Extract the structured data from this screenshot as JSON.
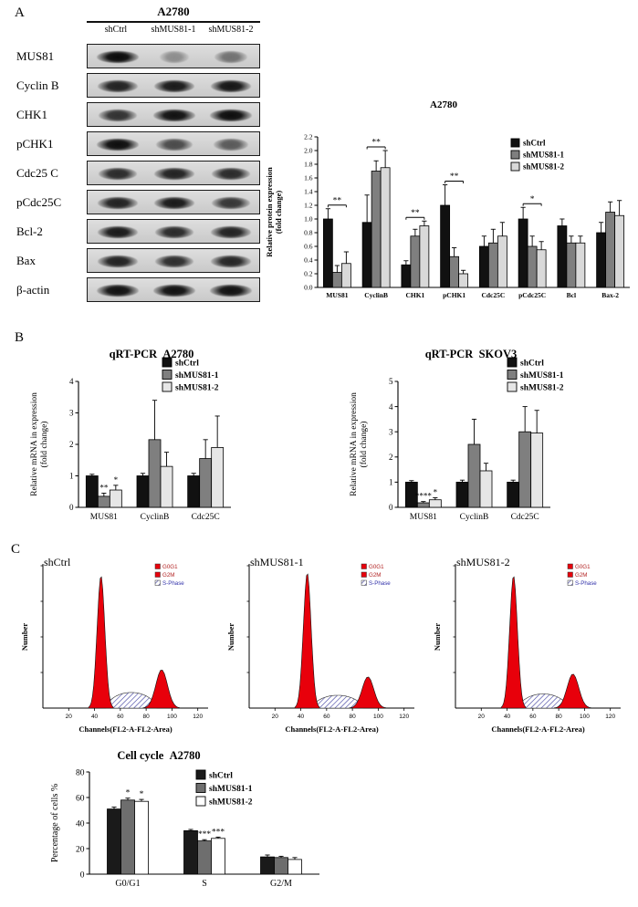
{
  "panels": {
    "a": "A",
    "b": "B",
    "c": "C"
  },
  "western_blot": {
    "title": "A2780",
    "lanes": [
      "shCtrl",
      "shMUS81-1",
      "shMUS81-2"
    ],
    "rows": [
      {
        "label": "MUS81",
        "bands": [
          1.0,
          0.18,
          0.35
        ]
      },
      {
        "label": "Cyclin B",
        "bands": [
          0.85,
          0.9,
          0.92
        ]
      },
      {
        "label": "CHK1",
        "bands": [
          0.75,
          0.95,
          0.97
        ]
      },
      {
        "label": "pCHK1",
        "bands": [
          0.97,
          0.6,
          0.5
        ]
      },
      {
        "label": "Cdc25 C",
        "bands": [
          0.8,
          0.85,
          0.8
        ]
      },
      {
        "label": "pCdc25C",
        "bands": [
          0.85,
          0.9,
          0.72
        ]
      },
      {
        "label": "Bcl-2",
        "bands": [
          0.9,
          0.8,
          0.85
        ]
      },
      {
        "label": "Bax",
        "bands": [
          0.85,
          0.78,
          0.82
        ]
      },
      {
        "label": "β-actin",
        "bands": [
          0.95,
          0.95,
          0.95
        ]
      }
    ]
  },
  "chart_data": [
    {
      "id": "protein-expression",
      "type": "bar",
      "title": "A2780",
      "ylabel": [
        "Relative protein expression",
        "(fold change)"
      ],
      "categories": [
        "MUS81",
        "CyclinB",
        "CHK1",
        "pCHK1",
        "Cdc25C",
        "pCdc25C",
        "Bcl",
        "Bax-2"
      ],
      "ylim": [
        0,
        2.2
      ],
      "ytick_step": 0.2,
      "ytick_decimals": 1,
      "series": [
        {
          "name": "shCtrl",
          "color": "#111111",
          "values": [
            1.0,
            0.95,
            0.33,
            1.2,
            0.6,
            1.0,
            0.9,
            0.8
          ],
          "errors": [
            0.15,
            0.4,
            0.06,
            0.3,
            0.15,
            0.17,
            0.1,
            0.15
          ]
        },
        {
          "name": "shMUS81-1",
          "color": "#7f7f7f",
          "values": [
            0.22,
            1.7,
            0.75,
            0.45,
            0.65,
            0.6,
            0.65,
            1.1
          ],
          "errors": [
            0.1,
            0.15,
            0.1,
            0.13,
            0.2,
            0.15,
            0.1,
            0.15
          ]
        },
        {
          "name": "shMUS81-2",
          "color": "#d9d9d9",
          "values": [
            0.35,
            1.75,
            0.9,
            0.2,
            0.75,
            0.55,
            0.65,
            1.05
          ],
          "errors": [
            0.17,
            0.25,
            0.07,
            0.05,
            0.2,
            0.12,
            0.1,
            0.22
          ]
        }
      ],
      "brackets": [
        {
          "category": "MUS81",
          "label": "**"
        },
        {
          "category": "CyclinB",
          "label": "**"
        },
        {
          "category": "CHK1",
          "label": "**"
        },
        {
          "category": "pCHK1",
          "label": "**"
        },
        {
          "category": "pCdc25C",
          "label": "*"
        }
      ]
    },
    {
      "id": "qrtpcr-a2780",
      "type": "bar",
      "title": "qRT-PCR  A2780",
      "ylabel": [
        "Relative mRNA in expression",
        "(fold change)"
      ],
      "categories": [
        "MUS81",
        "CyclinB",
        "Cdc25C"
      ],
      "ylim": [
        0,
        4
      ],
      "ytick_step": 1,
      "ytick_decimals": 0,
      "series": [
        {
          "name": "shCtrl",
          "color": "#111111",
          "values": [
            1.0,
            1.0,
            1.0
          ],
          "errors": [
            0.05,
            0.08,
            0.08
          ],
          "stars": [
            "",
            "",
            ""
          ]
        },
        {
          "name": "shMUS81-1",
          "color": "#7f7f7f",
          "values": [
            0.35,
            2.15,
            1.55
          ],
          "errors": [
            0.1,
            1.25,
            0.6
          ],
          "stars": [
            "**",
            "",
            ""
          ]
        },
        {
          "name": "shMUS81-2",
          "color": "#e6e6e6",
          "values": [
            0.55,
            1.3,
            1.9
          ],
          "errors": [
            0.15,
            0.45,
            1.0
          ],
          "stars": [
            "*",
            "",
            ""
          ]
        }
      ]
    },
    {
      "id": "qrtpcr-skov3",
      "type": "bar",
      "title": "qRT-PCR  SKOV3",
      "ylabel": [
        "Relative mRNA in expression",
        "(fold change)"
      ],
      "categories": [
        "MUS81",
        "CyclinB",
        "Cdc25C"
      ],
      "ylim": [
        0,
        5
      ],
      "ytick_step": 1,
      "ytick_decimals": 0,
      "series": [
        {
          "name": "shCtrl",
          "color": "#111111",
          "values": [
            1.0,
            1.0,
            1.0
          ],
          "errors": [
            0.06,
            0.08,
            0.08
          ],
          "stars": [
            "",
            "",
            ""
          ]
        },
        {
          "name": "shMUS81-1",
          "color": "#7f7f7f",
          "values": [
            0.18,
            2.5,
            3.0
          ],
          "errors": [
            0.05,
            1.0,
            1.0
          ],
          "stars": [
            "****",
            "",
            ""
          ]
        },
        {
          "name": "shMUS81-2",
          "color": "#e6e6e6",
          "values": [
            0.3,
            1.45,
            2.95
          ],
          "errors": [
            0.08,
            0.3,
            0.9
          ],
          "stars": [
            "*",
            "",
            ""
          ]
        }
      ]
    },
    {
      "id": "cell-cycle",
      "type": "bar",
      "title": "Cell cycle  A2780",
      "ylabel": [
        "Percentage of cells %"
      ],
      "categories": [
        "G0/G1",
        "S",
        "G2/M"
      ],
      "ylim": [
        0,
        80
      ],
      "ytick_step": 20,
      "ytick_decimals": 0,
      "series": [
        {
          "name": "shCtrl",
          "color": "#1a1a1a",
          "values": [
            51,
            34,
            13.5
          ],
          "errors": [
            1.5,
            1,
            1.5
          ],
          "stars": [
            "",
            "",
            ""
          ]
        },
        {
          "name": "shMUS81-1",
          "color": "#6e6e6e",
          "values": [
            58,
            26,
            13
          ],
          "errors": [
            1.5,
            1,
            1
          ],
          "stars": [
            "*",
            "***",
            ""
          ]
        },
        {
          "name": "shMUS81-2",
          "color": "#ffffff",
          "values": [
            57,
            28,
            11.5
          ],
          "errors": [
            1.5,
            1,
            1.5
          ],
          "stars": [
            "*",
            "***",
            ""
          ]
        }
      ]
    },
    {
      "id": "flow-cytometry",
      "type": "flow-histogram",
      "xlabel": "Channels(FL2-A-FL2-Area)",
      "ylabel": "Number",
      "xticks": [
        20,
        40,
        60,
        80,
        100,
        120
      ],
      "xmax": 128,
      "fill_color": "#e8000b",
      "hatch_color": "#3b3b9e",
      "legend": [
        {
          "label": "G0G1",
          "swatch": "solid",
          "text_color": "#b22222"
        },
        {
          "label": "G2M",
          "swatch": "solid",
          "text_color": "#b22222"
        },
        {
          "label": "S-Phase",
          "swatch": "hatch",
          "text_color": "#3333aa"
        }
      ],
      "plots": [
        {
          "title": "shCtrl",
          "g1_center": 45,
          "g1_sigma": 3,
          "g1_height": 0.93,
          "g2_center": 92,
          "g2_sigma": 4.5,
          "g2_height": 0.27,
          "s_from": 49,
          "s_to": 88,
          "s_height": 0.11
        },
        {
          "title": "shMUS81-1",
          "g1_center": 45,
          "g1_sigma": 3,
          "g1_height": 0.95,
          "g2_center": 92,
          "g2_sigma": 4.5,
          "g2_height": 0.22,
          "s_from": 49,
          "s_to": 88,
          "s_height": 0.09
        },
        {
          "title": "shMUS81-2",
          "g1_center": 45,
          "g1_sigma": 3,
          "g1_height": 0.93,
          "g2_center": 91,
          "g2_sigma": 4.5,
          "g2_height": 0.24,
          "s_from": 49,
          "s_to": 87,
          "s_height": 0.1
        }
      ]
    }
  ]
}
